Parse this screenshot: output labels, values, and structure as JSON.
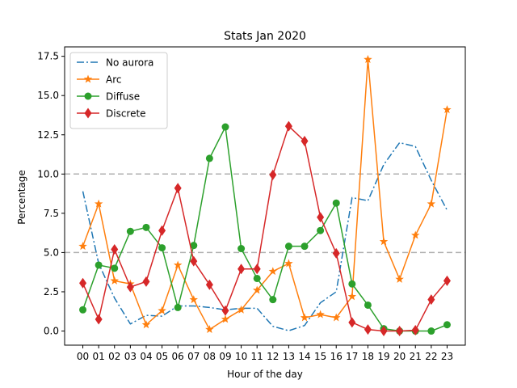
{
  "chart_data": {
    "type": "line",
    "title": "Stats Jan 2020",
    "xlabel": "Hour of the day",
    "ylabel": "Percentage",
    "categories": [
      "00",
      "01",
      "02",
      "03",
      "04",
      "05",
      "06",
      "07",
      "08",
      "09",
      "10",
      "11",
      "12",
      "13",
      "14",
      "15",
      "16",
      "17",
      "18",
      "19",
      "20",
      "21",
      "22",
      "23"
    ],
    "ylim": [
      -0.9,
      18.1
    ],
    "yticks": [
      "0.0",
      "2.5",
      "5.0",
      "7.5",
      "10.0",
      "12.5",
      "15.0",
      "17.5"
    ],
    "reference_lines": [
      5.0,
      10.0
    ],
    "legend_position": "upper-left",
    "series": [
      {
        "name": "No aurora",
        "color": "#1f77b4",
        "linestyle": "dashdot",
        "marker": "none",
        "values": [
          8.9,
          4.3,
          2.1,
          0.45,
          1.0,
          0.95,
          1.6,
          1.6,
          1.5,
          1.35,
          1.45,
          1.45,
          0.3,
          0.02,
          0.35,
          1.8,
          2.5,
          8.5,
          8.3,
          10.6,
          12.0,
          11.75,
          9.6,
          7.7
        ]
      },
      {
        "name": "Arc",
        "color": "#ff7f0e",
        "linestyle": "solid",
        "marker": "star",
        "values": [
          5.4,
          8.1,
          3.2,
          3.0,
          0.4,
          1.3,
          4.2,
          2.0,
          0.1,
          0.75,
          1.35,
          2.6,
          3.8,
          4.3,
          0.85,
          1.05,
          0.85,
          2.2,
          17.3,
          5.7,
          3.3,
          6.1,
          8.1,
          14.1
        ]
      },
      {
        "name": "Diffuse",
        "color": "#2ca02c",
        "linestyle": "solid",
        "marker": "circle",
        "values": [
          1.35,
          4.2,
          4.0,
          6.35,
          6.6,
          5.3,
          1.5,
          5.45,
          11.0,
          13.0,
          5.25,
          3.35,
          2.0,
          5.4,
          5.4,
          6.4,
          8.15,
          3.0,
          1.65,
          0.15,
          0.0,
          0.0,
          0.0,
          0.4
        ]
      },
      {
        "name": "Discrete",
        "color": "#d62728",
        "linestyle": "solid",
        "marker": "diamond",
        "values": [
          3.05,
          0.75,
          5.2,
          2.8,
          3.15,
          6.4,
          9.1,
          4.45,
          2.95,
          1.3,
          3.95,
          3.95,
          9.95,
          13.05,
          12.1,
          7.25,
          4.95,
          0.55,
          0.1,
          0.0,
          0.0,
          0.05,
          2.0,
          3.2
        ]
      }
    ]
  }
}
